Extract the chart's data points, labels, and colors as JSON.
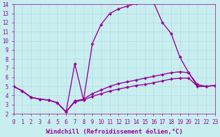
{
  "background_color": "#c8eef0",
  "grid_color": "#b0dde0",
  "line_color": "#990099",
  "xlabel": "Windchill (Refroidissement éolien,°C)",
  "xlim": [
    0,
    23
  ],
  "ylim": [
    2,
    14
  ],
  "xticks": [
    0,
    1,
    2,
    3,
    4,
    5,
    6,
    7,
    8,
    9,
    10,
    11,
    12,
    13,
    14,
    15,
    16,
    17,
    18,
    19,
    20,
    21,
    22,
    23
  ],
  "yticks": [
    2,
    3,
    4,
    5,
    6,
    7,
    8,
    9,
    10,
    11,
    12,
    13,
    14
  ],
  "curve1_x": [
    0,
    1,
    2,
    3,
    4,
    5,
    6,
    7,
    8,
    9,
    10,
    11,
    12,
    13,
    14,
    15,
    16,
    17,
    18,
    19,
    20,
    21,
    22,
    23
  ],
  "curve1_y": [
    5.0,
    4.5,
    3.8,
    3.6,
    3.5,
    3.2,
    2.2,
    7.5,
    3.5,
    9.7,
    11.8,
    13.0,
    13.5,
    13.8,
    14.1,
    14.3,
    14.2,
    12.0,
    10.8,
    8.2,
    6.5,
    5.0,
    5.0,
    5.1
  ],
  "curve2_x": [
    0,
    1,
    2,
    3,
    4,
    5,
    6,
    7,
    8,
    9,
    10,
    11,
    12,
    13,
    14,
    15,
    16,
    17,
    18,
    19,
    20,
    21,
    22,
    23
  ],
  "curve2_y": [
    5.0,
    4.5,
    3.8,
    3.6,
    3.5,
    3.2,
    2.2,
    3.4,
    3.6,
    4.2,
    4.6,
    5.0,
    5.3,
    5.5,
    5.7,
    5.9,
    6.1,
    6.3,
    6.5,
    6.6,
    6.5,
    5.2,
    5.0,
    5.1
  ],
  "curve3_x": [
    0,
    1,
    2,
    3,
    4,
    5,
    6,
    7,
    8,
    9,
    10,
    11,
    12,
    13,
    14,
    15,
    16,
    17,
    18,
    19,
    20,
    21,
    22,
    23
  ],
  "curve3_y": [
    5.0,
    4.5,
    3.8,
    3.6,
    3.5,
    3.2,
    2.2,
    3.3,
    3.5,
    3.9,
    4.2,
    4.5,
    4.7,
    4.9,
    5.1,
    5.2,
    5.4,
    5.6,
    5.8,
    5.9,
    5.9,
    5.0,
    5.0,
    5.1
  ],
  "marker": "D",
  "marker_size": 2.5,
  "line_width": 1.0,
  "tick_label_fontsize": 5.5,
  "xlabel_fontsize": 6.5
}
